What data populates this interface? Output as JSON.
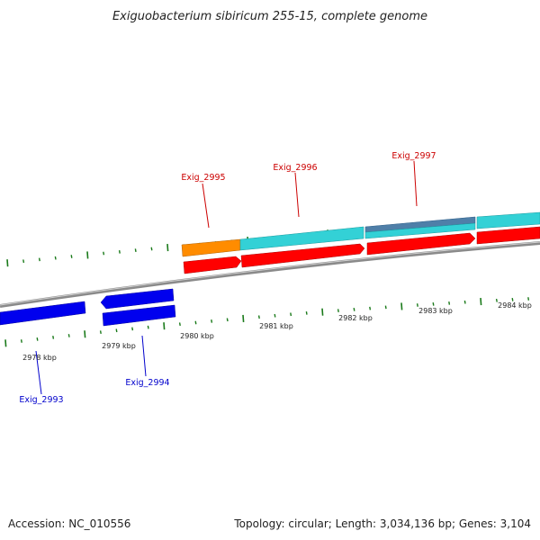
{
  "title": "Exiguobacterium sibiricum 255-15, complete genome",
  "footer": {
    "accession": "Accession: NC_010556",
    "summary": "Topology: circular; Length: 3,034,136 bp; Genes: 3,104"
  },
  "colors": {
    "forward_gene": "#ff0000",
    "reverse_gene": "#0000ee",
    "forward_label": "#cc0000",
    "reverse_label": "#0000cc",
    "cds_cyan": "#33d1d6",
    "cds_orange": "#ff8c00",
    "cds_steel": "#4f7fa8",
    "tick": "#1a7a1a",
    "backbone": "#8a8a8a"
  },
  "ticks": [
    {
      "label": "2978 kbp"
    },
    {
      "label": "2979 kbp"
    },
    {
      "label": "2980 kbp"
    },
    {
      "label": "2981 kbp"
    },
    {
      "label": "2982 kbp"
    },
    {
      "label": "2983 kbp"
    },
    {
      "label": "2984 kbp"
    }
  ],
  "genes": [
    {
      "name": "Exig_2993",
      "strand": "reverse"
    },
    {
      "name": "Exig_2994",
      "strand": "reverse"
    },
    {
      "name": "Exig_2995",
      "strand": "forward"
    },
    {
      "name": "Exig_2996",
      "strand": "forward"
    },
    {
      "name": "Exig_2997",
      "strand": "forward"
    }
  ]
}
